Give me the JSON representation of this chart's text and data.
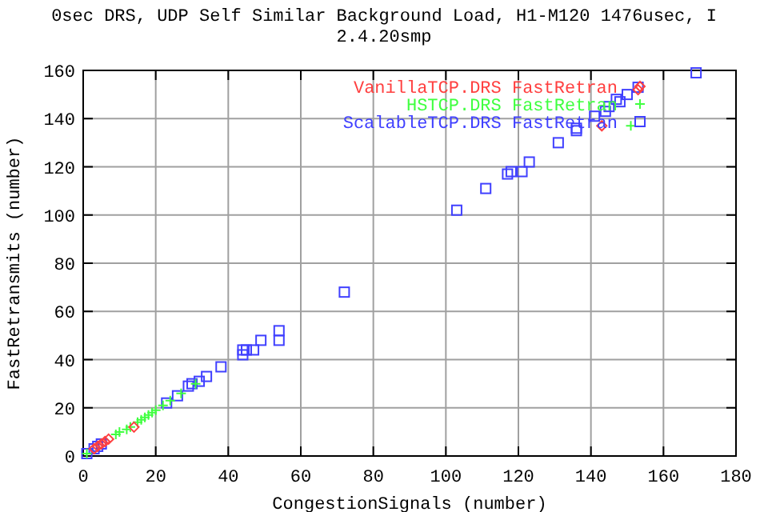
{
  "chart_data": {
    "type": "scatter",
    "title": "0sec DRS, UDP Self Similar Background Load, H1-M120 1476usec, I",
    "subtitle": "2.4.20smp",
    "xlabel": "CongestionSignals (number)",
    "ylabel": "FastRetransmits (number)",
    "xlim": [
      0,
      180
    ],
    "ylim": [
      0,
      160
    ],
    "xticks": [
      0,
      20,
      40,
      60,
      80,
      100,
      120,
      140,
      160,
      180
    ],
    "yticks": [
      0,
      20,
      40,
      60,
      80,
      100,
      120,
      140,
      160
    ],
    "grid": true,
    "legend": "top right",
    "series": [
      {
        "name": "VanillaTCP.DRS FastRetran",
        "color": "#ff4040",
        "marker": "diamond",
        "x": [
          3,
          4,
          5,
          6,
          7,
          14,
          143,
          153
        ],
        "values": [
          3,
          4,
          5,
          6,
          7,
          12,
          137,
          152
        ]
      },
      {
        "name": "HSTCP.DRS FastRetran",
        "color": "#40ff40",
        "marker": "cross",
        "x": [
          1,
          9,
          10,
          12,
          13,
          15,
          16,
          17,
          18,
          19,
          20,
          22,
          24,
          27,
          31,
          151
        ],
        "values": [
          1,
          9,
          10,
          11,
          12,
          14,
          15,
          16,
          17,
          18,
          19,
          21,
          23,
          26,
          30,
          137
        ]
      },
      {
        "name": "ScalableTCP.DRS FastRetran",
        "color": "#4040ff",
        "marker": "square",
        "x": [
          1,
          3,
          4,
          5,
          23,
          26,
          29,
          30,
          32,
          34,
          38,
          44,
          44,
          45,
          47,
          49,
          54,
          54,
          72,
          103,
          111,
          117,
          118,
          121,
          123,
          131,
          136,
          136,
          141,
          144,
          145,
          147,
          148,
          150,
          153,
          169
        ],
        "values": [
          1,
          3,
          4,
          5,
          22,
          25,
          29,
          30,
          31,
          33,
          37,
          42,
          44,
          44,
          44,
          48,
          48,
          52,
          68,
          102,
          111,
          117,
          118,
          118,
          122,
          130,
          135,
          136,
          141,
          143,
          145,
          148,
          147,
          150,
          153,
          159
        ]
      }
    ]
  }
}
